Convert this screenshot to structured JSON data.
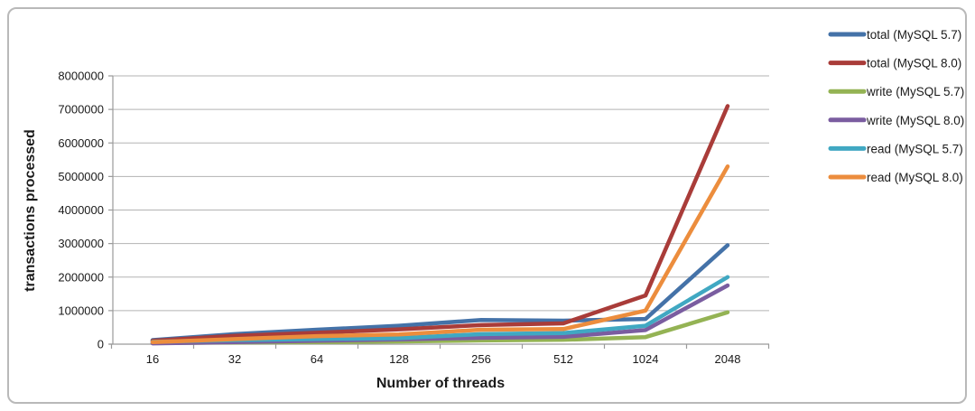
{
  "chart_data": {
    "type": "line",
    "title": "",
    "xlabel": "Number of threads",
    "ylabel": "transactions processed",
    "categories": [
      "16",
      "32",
      "64",
      "128",
      "256",
      "512",
      "1024",
      "2048"
    ],
    "y_ticks": [
      0,
      1000000,
      2000000,
      3000000,
      4000000,
      5000000,
      6000000,
      7000000,
      8000000
    ],
    "ylim": [
      0,
      8000000
    ],
    "grid": true,
    "legend_position": "right",
    "series": [
      {
        "name": "total (MySQL 5.7)",
        "color": "#4472A8",
        "values": [
          120000,
          300000,
          430000,
          550000,
          720000,
          700000,
          750000,
          2950000
        ]
      },
      {
        "name": "total (MySQL 8.0)",
        "color": "#A93C39",
        "values": [
          100000,
          250000,
          340000,
          440000,
          570000,
          620000,
          1450000,
          7100000
        ]
      },
      {
        "name": "write (MySQL 5.7)",
        "color": "#94B354",
        "values": [
          30000,
          50000,
          60000,
          80000,
          110000,
          130000,
          210000,
          950000
        ]
      },
      {
        "name": "write (MySQL 8.0)",
        "color": "#7A5DA0",
        "values": [
          25000,
          60000,
          100000,
          140000,
          190000,
          220000,
          420000,
          1750000
        ]
      },
      {
        "name": "read (MySQL 5.7)",
        "color": "#40A8C2",
        "values": [
          70000,
          120000,
          150000,
          180000,
          300000,
          330000,
          550000,
          2000000
        ]
      },
      {
        "name": "read (MySQL 8.0)",
        "color": "#EC8D3D",
        "values": [
          60000,
          150000,
          240000,
          290000,
          430000,
          450000,
          1000000,
          5300000
        ]
      }
    ],
    "colors": {
      "gridline": "#b3b3b3",
      "axis": "#9a9a9a",
      "text": "#1a1a1a",
      "frame_border": "#b9b9b9"
    }
  }
}
